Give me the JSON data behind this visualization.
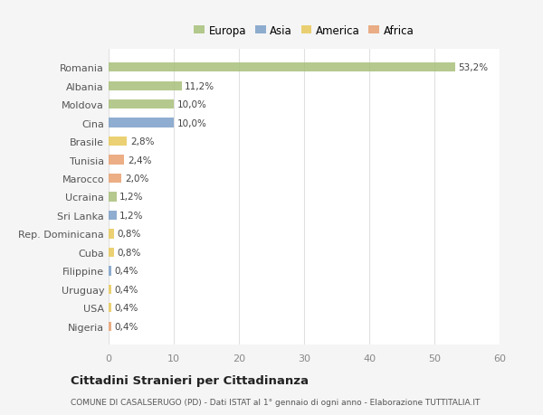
{
  "categories": [
    "Romania",
    "Albania",
    "Moldova",
    "Cina",
    "Brasile",
    "Tunisia",
    "Marocco",
    "Ucraina",
    "Sri Lanka",
    "Rep. Dominicana",
    "Cuba",
    "Filippine",
    "Uruguay",
    "USA",
    "Nigeria"
  ],
  "values": [
    53.2,
    11.2,
    10.0,
    10.0,
    2.8,
    2.4,
    2.0,
    1.2,
    1.2,
    0.8,
    0.8,
    0.4,
    0.4,
    0.4,
    0.4
  ],
  "labels": [
    "53,2%",
    "11,2%",
    "10,0%",
    "10,0%",
    "2,8%",
    "2,4%",
    "2,0%",
    "1,2%",
    "1,2%",
    "0,8%",
    "0,8%",
    "0,4%",
    "0,4%",
    "0,4%",
    "0,4%"
  ],
  "continents": [
    "Europa",
    "Europa",
    "Europa",
    "Asia",
    "America",
    "Africa",
    "Africa",
    "Europa",
    "Asia",
    "America",
    "America",
    "Asia",
    "America",
    "America",
    "Africa"
  ],
  "continent_colors": {
    "Europa": "#a8c07a",
    "Asia": "#7b9fc8",
    "America": "#e8c95a",
    "Africa": "#e8a070"
  },
  "legend_order": [
    "Europa",
    "Asia",
    "America",
    "Africa"
  ],
  "plot_bg": "#ffffff",
  "fig_bg": "#f5f5f5",
  "title": "Cittadini Stranieri per Cittadinanza",
  "subtitle": "COMUNE DI CASALSERUGO (PD) - Dati ISTAT al 1° gennaio di ogni anno - Elaborazione TUTTITALIA.IT",
  "xlim": [
    0,
    60
  ],
  "xticks": [
    0,
    10,
    20,
    30,
    40,
    50,
    60
  ]
}
